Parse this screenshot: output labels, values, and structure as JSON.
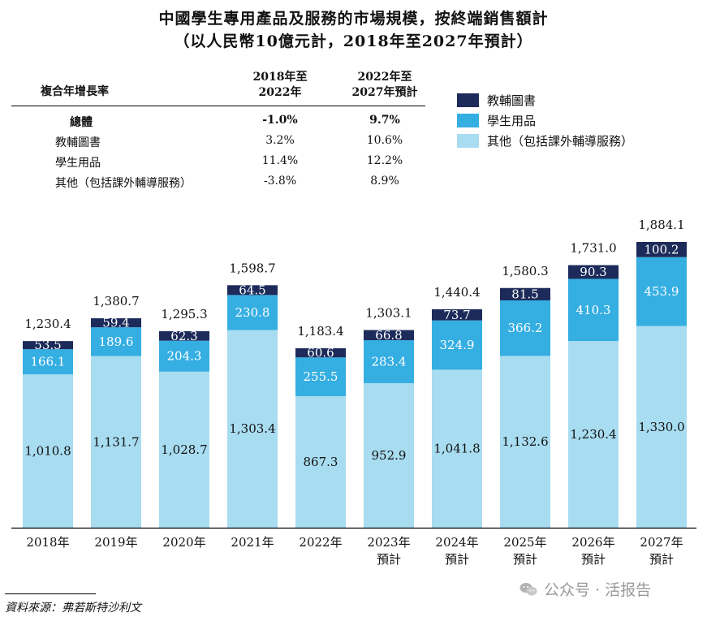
{
  "title": {
    "line1": "中國學生專用產品及服務的市場規模，按終端銷售額計",
    "line2": "（以人民幣10億元計，2018年至2027年預計）"
  },
  "cagr_table": {
    "header_label": "複合年增長率",
    "col1_header": [
      "2018年至",
      "2022年"
    ],
    "col2_header": [
      "2022年至",
      "2027年預計"
    ],
    "rows": [
      {
        "label": "總體",
        "v1": "-1.0%",
        "v2": "9.7%",
        "bold": true
      },
      {
        "label": "教輔圖書",
        "v1": "3.2%",
        "v2": "10.6%",
        "bold": false
      },
      {
        "label": "學生用品",
        "v1": "11.4%",
        "v2": "12.2%",
        "bold": false
      },
      {
        "label": "其他（包括課外輔導服務）",
        "v1": "-3.8%",
        "v2": "8.9%",
        "bold": false
      }
    ]
  },
  "source_text": "資料來源：弗若斯特沙利文",
  "watermark_text": "公众号 · 活报告",
  "chart_data": {
    "type": "bar",
    "stacked": true,
    "categories": [
      "2018年",
      "2019年",
      "2020年",
      "2021年",
      "2022年",
      "2023年",
      "2024年",
      "2025年",
      "2026年",
      "2027年"
    ],
    "category_sublabels": [
      "",
      "",
      "",
      "",
      "",
      "預計",
      "預計",
      "預計",
      "預計",
      "預計"
    ],
    "series": [
      {
        "name": "其他（包括課外輔導服務）",
        "color": "#a8dcf0",
        "text_color": "#111111",
        "values": [
          1010.8,
          1131.7,
          1028.7,
          1303.4,
          867.3,
          952.9,
          1041.8,
          1132.6,
          1230.4,
          1330.0
        ],
        "labels": [
          "1,010.8",
          "1,131.7",
          "1,028.7",
          "1,303.4",
          "867.3",
          "952.9",
          "1,041.8",
          "1,132.6",
          "1,230.4",
          "1,330.0"
        ]
      },
      {
        "name": "學生用品",
        "color": "#35aee2",
        "text_color": "#ffffff",
        "values": [
          166.1,
          189.6,
          204.3,
          230.8,
          255.5,
          283.4,
          324.9,
          366.2,
          410.3,
          453.9
        ],
        "labels": [
          "166.1",
          "189.6",
          "204.3",
          "230.8",
          "255.5",
          "283.4",
          "324.9",
          "366.2",
          "410.3",
          "453.9"
        ]
      },
      {
        "name": "教輔圖書",
        "color": "#1c2b5a",
        "text_color": "#ffffff",
        "values": [
          53.5,
          59.4,
          62.3,
          64.5,
          60.6,
          66.8,
          73.7,
          81.5,
          90.3,
          100.2
        ],
        "labels": [
          "53.5",
          "59.4",
          "62.3",
          "64.5",
          "60.6",
          "66.8",
          "73.7",
          "81.5",
          "90.3",
          "100.2"
        ]
      }
    ],
    "totals": [
      1230.4,
      1380.7,
      1295.3,
      1598.7,
      1183.4,
      1303.1,
      1440.4,
      1580.3,
      1731.0,
      1884.1
    ],
    "total_labels": [
      "1,230.4",
      "1,380.7",
      "1,295.3",
      "1,598.7",
      "1,183.4",
      "1,303.1",
      "1,440.4",
      "1,580.3",
      "1,731.0",
      "1,884.1"
    ],
    "legend_order": [
      "教輔圖書",
      "學生用品",
      "其他（包括課外輔導服務）"
    ],
    "legend_colors": [
      "#1c2b5a",
      "#35aee2",
      "#a8dcf0"
    ],
    "ylim": [
      0,
      1884.1
    ],
    "grid": false
  }
}
